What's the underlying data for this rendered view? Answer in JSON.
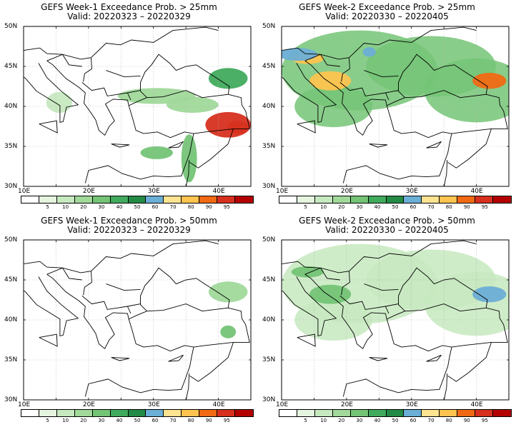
{
  "panels": [
    {
      "title": "GEFS Week-1 Exceedance Prob. > 25mm",
      "valid": "Valid: 20220323 – 20220329",
      "lat_labels": [
        "50N",
        "45N",
        "40N",
        "35N",
        "30N"
      ],
      "lon_labels": [
        "10E",
        "20E",
        "30E",
        "40E"
      ],
      "colorbar_labels": [
        "5",
        "10",
        "20",
        "30",
        "40",
        "50",
        "60",
        "70",
        "80",
        "90",
        "95"
      ],
      "features": [
        {
          "id": "georgia",
          "kind": "band",
          "color": "#41ab5d",
          "level": 0.35
        },
        {
          "id": "turkey-north",
          "kind": "band",
          "color": "#a1d99b",
          "level": 0.15
        },
        {
          "id": "se-turkey-core",
          "kind": "hotspot",
          "color": "#d7301f",
          "level": 0.92
        },
        {
          "id": "levant",
          "kind": "band",
          "color": "#74c476",
          "level": 0.25
        },
        {
          "id": "italy-south",
          "kind": "band",
          "color": "#c7e9c0",
          "level": 0.1
        }
      ]
    },
    {
      "title": "GEFS Week-2 Exceedance Prob. > 25mm",
      "valid": "Valid: 20220330 – 20220405",
      "lat_labels": [
        "50N",
        "45N",
        "40N",
        "35N",
        "30N"
      ],
      "lon_labels": [
        "10E",
        "20E",
        "30E",
        "40E"
      ],
      "colorbar_labels": [
        "5",
        "10",
        "20",
        "30",
        "40",
        "50",
        "60",
        "70",
        "80",
        "90",
        "95"
      ],
      "features": [
        {
          "id": "balkans",
          "kind": "wide",
          "color": "#74c476",
          "level": 0.3
        },
        {
          "id": "adriatic-coast",
          "kind": "hotspot",
          "color": "#fec44f",
          "level": 0.75
        },
        {
          "id": "alps",
          "kind": "band",
          "color": "#6baed6",
          "level": 0.55
        },
        {
          "id": "caucasus",
          "kind": "hotspot",
          "color": "#f16913",
          "level": 0.85
        }
      ]
    },
    {
      "title": "GEFS Week-1 Exceedance Prob. > 50mm",
      "valid": "Valid: 20220323 – 20220329",
      "lat_labels": [
        "50N",
        "45N",
        "40N",
        "35N",
        "30N"
      ],
      "lon_labels": [
        "10E",
        "20E",
        "30E",
        "40E"
      ],
      "colorbar_labels": [
        "5",
        "10",
        "20",
        "30",
        "40",
        "50",
        "60",
        "70",
        "80",
        "90",
        "95"
      ],
      "features": [
        {
          "id": "georgia",
          "kind": "band",
          "color": "#a1d99b",
          "level": 0.15
        },
        {
          "id": "se-turkey",
          "kind": "band",
          "color": "#74c476",
          "level": 0.25
        }
      ]
    },
    {
      "title": "GEFS Week-2 Exceedance Prob. > 50mm",
      "valid": "Valid: 20220330 – 20220405",
      "lat_labels": [
        "50N",
        "45N",
        "40N",
        "35N",
        "30N"
      ],
      "lon_labels": [
        "10E",
        "20E",
        "30E",
        "40E"
      ],
      "colorbar_labels": [
        "5",
        "10",
        "20",
        "30",
        "40",
        "50",
        "60",
        "70",
        "80",
        "90",
        "95"
      ],
      "features": [
        {
          "id": "balkans",
          "kind": "wide",
          "color": "#c7e9c0",
          "level": 0.12
        },
        {
          "id": "adriatic-coast",
          "kind": "band",
          "color": "#74c476",
          "level": 0.3
        },
        {
          "id": "caucasus",
          "kind": "band",
          "color": "#6baed6",
          "level": 0.55
        }
      ]
    }
  ],
  "colorbar_colors": [
    "#ffffff",
    "#e5f5e0",
    "#c7e9c0",
    "#a1d99b",
    "#74c476",
    "#41ab5d",
    "#238b45",
    "#6baed6",
    "#fee391",
    "#fec44f",
    "#f16913",
    "#d7301f",
    "#b30000"
  ]
}
